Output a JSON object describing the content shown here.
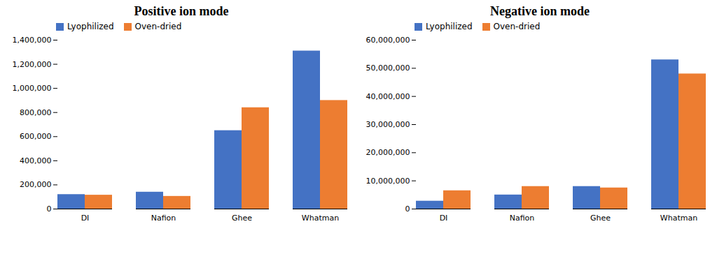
{
  "chart_data": [
    {
      "type": "bar",
      "title": "Positive ion mode",
      "categories": [
        "DI",
        "Nafion",
        "Ghee",
        "Whatman"
      ],
      "series": [
        {
          "name": "Lyophilized",
          "color": "#4472C4",
          "values": [
            120000,
            140000,
            650000,
            1310000
          ]
        },
        {
          "name": "Oven-dried",
          "color": "#ED7D31",
          "values": [
            115000,
            105000,
            840000,
            900000
          ]
        }
      ],
      "ylim": [
        0,
        1400000
      ],
      "yticks": [
        0,
        {
          "value": 200000,
          "label": "200,000"
        },
        {
          "value": 400000,
          "label": "400,000"
        },
        {
          "value": 600000,
          "label": "600,000"
        },
        {
          "value": 800000,
          "label": "800,000"
        },
        {
          "value": 1000000,
          "label": "1,000,000"
        },
        {
          "value": 1200000,
          "label": "1,200,000"
        },
        {
          "value": 1400000,
          "label": "1,400,000"
        }
      ],
      "legend": "upper left"
    },
    {
      "type": "bar",
      "title": "Negative ion mode",
      "categories": [
        "DI",
        "Nafion",
        "Ghee",
        "Whatman"
      ],
      "series": [
        {
          "name": "Lyophilized",
          "color": "#4472C4",
          "values": [
            2800000,
            5000000,
            8000000,
            53000000
          ]
        },
        {
          "name": "Oven-dried",
          "color": "#ED7D31",
          "values": [
            6500000,
            8000000,
            7500000,
            48000000
          ]
        }
      ],
      "ylim": [
        0,
        60000000
      ],
      "yticks": [
        0,
        {
          "value": 10000000,
          "label": "10,000,000"
        },
        {
          "value": 20000000,
          "label": "20,000,000"
        },
        {
          "value": 30000000,
          "label": "30,000,000"
        },
        {
          "value": 40000000,
          "label": "40,000,000"
        },
        {
          "value": 50000000,
          "label": "50,000,000"
        },
        {
          "value": 60000000,
          "label": "60,000,000"
        }
      ],
      "legend": "upper left"
    }
  ]
}
